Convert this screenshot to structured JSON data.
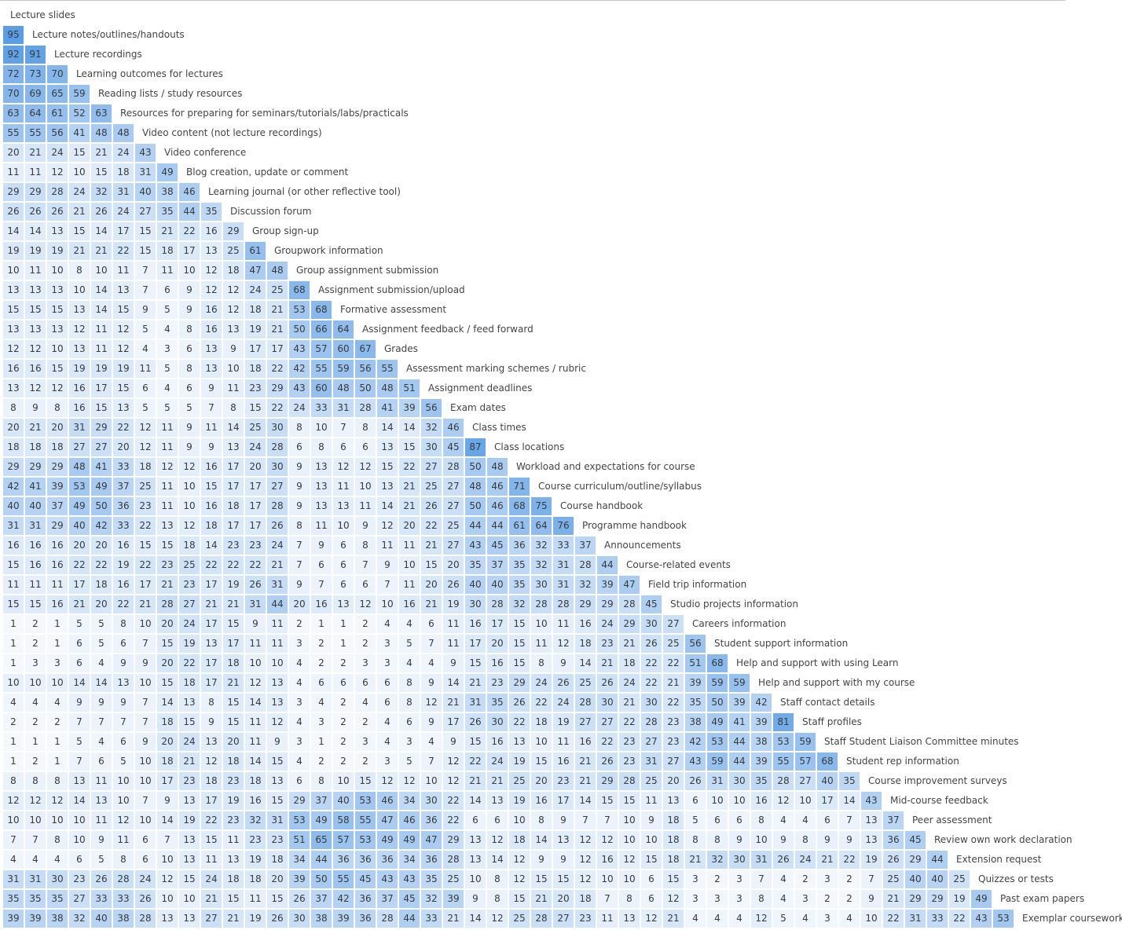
{
  "chart_data": {
    "type": "heatmap",
    "layout": "lower-triangular matrix, each row label printed to the right of its row",
    "value_range": [
      0,
      100
    ],
    "color_low": "#f7fafe",
    "color_high": "#5499e3",
    "rows": [
      {
        "label": "Lecture slides",
        "values": []
      },
      {
        "label": "Lecture notes/outlines/handouts",
        "values": [
          95
        ]
      },
      {
        "label": "Lecture recordings",
        "values": [
          92,
          91
        ]
      },
      {
        "label": "Learning outcomes for lectures",
        "values": [
          72,
          73,
          70
        ]
      },
      {
        "label": "Reading lists / study resources",
        "values": [
          70,
          69,
          65,
          59
        ]
      },
      {
        "label": "Resources for preparing for seminars/tutorials/labs/practicals",
        "values": [
          63,
          64,
          61,
          52,
          63
        ]
      },
      {
        "label": "Video content (not lecture recordings)",
        "values": [
          55,
          55,
          56,
          41,
          48,
          48
        ]
      },
      {
        "label": "Video conference",
        "values": [
          20,
          21,
          24,
          15,
          21,
          24,
          43
        ]
      },
      {
        "label": "Blog creation, update or comment",
        "values": [
          11,
          11,
          12,
          10,
          15,
          18,
          31,
          49
        ]
      },
      {
        "label": "Learning journal (or other reflective tool)",
        "values": [
          29,
          29,
          28,
          24,
          32,
          31,
          40,
          38,
          46
        ]
      },
      {
        "label": "Discussion forum",
        "values": [
          26,
          26,
          26,
          21,
          26,
          24,
          27,
          35,
          44,
          35
        ]
      },
      {
        "label": "Group sign-up",
        "values": [
          14,
          14,
          13,
          15,
          14,
          17,
          15,
          21,
          22,
          16,
          29
        ]
      },
      {
        "label": "Groupwork information",
        "values": [
          19,
          19,
          19,
          21,
          21,
          22,
          15,
          18,
          17,
          13,
          25,
          61
        ]
      },
      {
        "label": "Group assignment submission",
        "values": [
          10,
          11,
          10,
          8,
          10,
          11,
          7,
          11,
          10,
          12,
          18,
          47,
          48
        ]
      },
      {
        "label": "Assignment submission/upload",
        "values": [
          13,
          13,
          13,
          10,
          14,
          13,
          7,
          6,
          9,
          12,
          12,
          24,
          25,
          68
        ]
      },
      {
        "label": "Formative assessment",
        "values": [
          15,
          15,
          15,
          13,
          14,
          15,
          9,
          5,
          9,
          16,
          12,
          18,
          21,
          53,
          68
        ]
      },
      {
        "label": "Assignment feedback / feed forward",
        "values": [
          13,
          13,
          13,
          12,
          11,
          12,
          5,
          4,
          8,
          16,
          13,
          19,
          21,
          50,
          66,
          64
        ]
      },
      {
        "label": "Grades",
        "values": [
          12,
          12,
          10,
          13,
          11,
          12,
          4,
          3,
          6,
          13,
          9,
          17,
          17,
          43,
          57,
          60,
          67
        ]
      },
      {
        "label": "Assessment marking schemes / rubric",
        "values": [
          16,
          16,
          15,
          19,
          19,
          19,
          11,
          5,
          8,
          13,
          10,
          18,
          22,
          42,
          55,
          59,
          56,
          55
        ]
      },
      {
        "label": "Assignment deadlines",
        "values": [
          13,
          12,
          12,
          16,
          17,
          15,
          6,
          4,
          6,
          9,
          11,
          23,
          29,
          43,
          60,
          48,
          50,
          48,
          51
        ]
      },
      {
        "label": "Exam dates",
        "values": [
          8,
          9,
          8,
          16,
          15,
          13,
          5,
          5,
          5,
          7,
          8,
          15,
          22,
          24,
          33,
          31,
          28,
          41,
          39,
          56
        ]
      },
      {
        "label": "Class times",
        "values": [
          20,
          21,
          20,
          31,
          29,
          22,
          12,
          11,
          9,
          11,
          14,
          25,
          30,
          8,
          10,
          7,
          8,
          14,
          14,
          32,
          46
        ]
      },
      {
        "label": "Class locations",
        "values": [
          18,
          18,
          18,
          27,
          27,
          20,
          12,
          11,
          9,
          9,
          13,
          24,
          28,
          6,
          8,
          6,
          6,
          13,
          15,
          30,
          45,
          87
        ]
      },
      {
        "label": "Workload and expectations for course",
        "values": [
          29,
          29,
          29,
          48,
          41,
          33,
          18,
          12,
          12,
          16,
          17,
          20,
          30,
          9,
          13,
          12,
          12,
          15,
          22,
          27,
          28,
          50,
          48
        ]
      },
      {
        "label": "Course curriculum/outline/syllabus",
        "values": [
          42,
          41,
          39,
          53,
          49,
          37,
          25,
          11,
          10,
          15,
          17,
          17,
          27,
          9,
          13,
          11,
          10,
          13,
          21,
          25,
          27,
          48,
          46,
          71
        ]
      },
      {
        "label": "Course handbook",
        "values": [
          40,
          40,
          37,
          49,
          50,
          36,
          23,
          11,
          10,
          16,
          18,
          17,
          28,
          9,
          13,
          13,
          11,
          14,
          21,
          26,
          27,
          50,
          46,
          68,
          75
        ]
      },
      {
        "label": "Programme handbook",
        "values": [
          31,
          31,
          29,
          40,
          42,
          33,
          22,
          13,
          12,
          18,
          17,
          17,
          26,
          8,
          11,
          10,
          9,
          12,
          20,
          22,
          25,
          44,
          44,
          61,
          64,
          76
        ]
      },
      {
        "label": "Announcements",
        "values": [
          16,
          16,
          16,
          20,
          20,
          16,
          15,
          15,
          18,
          14,
          23,
          23,
          24,
          7,
          9,
          6,
          8,
          11,
          11,
          21,
          27,
          43,
          45,
          36,
          32,
          33,
          37
        ]
      },
      {
        "label": "Course-related events",
        "values": [
          15,
          16,
          16,
          22,
          22,
          19,
          22,
          23,
          25,
          22,
          22,
          22,
          21,
          7,
          6,
          6,
          7,
          9,
          10,
          15,
          20,
          35,
          37,
          35,
          32,
          31,
          28,
          44
        ]
      },
      {
        "label": "Field trip information",
        "values": [
          11,
          11,
          11,
          17,
          18,
          16,
          17,
          21,
          23,
          17,
          19,
          26,
          31,
          9,
          7,
          6,
          6,
          7,
          11,
          20,
          26,
          40,
          40,
          35,
          30,
          31,
          32,
          39,
          47
        ]
      },
      {
        "label": "Studio projects information",
        "values": [
          15,
          15,
          16,
          21,
          20,
          22,
          21,
          28,
          27,
          21,
          21,
          31,
          44,
          20,
          16,
          13,
          12,
          10,
          16,
          21,
          19,
          30,
          28,
          32,
          28,
          28,
          29,
          29,
          28,
          45
        ]
      },
      {
        "label": "Careers information",
        "values": [
          1,
          2,
          1,
          5,
          5,
          8,
          10,
          20,
          24,
          17,
          15,
          9,
          11,
          2,
          1,
          1,
          2,
          4,
          4,
          6,
          11,
          16,
          17,
          15,
          10,
          11,
          16,
          24,
          29,
          30,
          27
        ]
      },
      {
        "label": "Student support information",
        "values": [
          1,
          2,
          1,
          6,
          5,
          6,
          7,
          15,
          19,
          13,
          17,
          11,
          11,
          3,
          2,
          1,
          2,
          3,
          5,
          7,
          11,
          17,
          20,
          15,
          11,
          12,
          18,
          23,
          21,
          26,
          25,
          56
        ]
      },
      {
        "label": "Help and support with using Learn",
        "values": [
          1,
          3,
          3,
          6,
          4,
          9,
          9,
          20,
          22,
          17,
          18,
          10,
          10,
          4,
          2,
          2,
          3,
          3,
          4,
          4,
          9,
          15,
          16,
          15,
          8,
          9,
          14,
          21,
          18,
          22,
          22,
          51,
          68
        ]
      },
      {
        "label": "Help and support with my course",
        "values": [
          10,
          10,
          10,
          14,
          14,
          13,
          10,
          15,
          18,
          17,
          21,
          12,
          13,
          4,
          6,
          6,
          6,
          6,
          8,
          9,
          14,
          21,
          23,
          29,
          24,
          26,
          25,
          26,
          24,
          22,
          21,
          39,
          59,
          59
        ]
      },
      {
        "label": "Staff contact details",
        "values": [
          4,
          4,
          4,
          9,
          9,
          9,
          7,
          14,
          13,
          8,
          15,
          14,
          13,
          3,
          4,
          2,
          4,
          6,
          8,
          12,
          21,
          31,
          35,
          26,
          22,
          24,
          28,
          30,
          21,
          30,
          22,
          35,
          50,
          39,
          42
        ]
      },
      {
        "label": "Staff profiles",
        "values": [
          2,
          2,
          2,
          7,
          7,
          7,
          7,
          18,
          15,
          9,
          15,
          11,
          12,
          4,
          3,
          2,
          2,
          4,
          6,
          9,
          17,
          26,
          30,
          22,
          18,
          19,
          27,
          27,
          22,
          28,
          23,
          38,
          49,
          41,
          39,
          81
        ]
      },
      {
        "label": "Staff Student Liaison Committee minutes",
        "values": [
          1,
          1,
          1,
          5,
          4,
          6,
          9,
          20,
          24,
          13,
          20,
          11,
          9,
          3,
          1,
          2,
          3,
          4,
          3,
          4,
          9,
          15,
          16,
          13,
          10,
          11,
          16,
          22,
          23,
          27,
          23,
          42,
          53,
          44,
          38,
          53,
          59
        ]
      },
      {
        "label": "Student rep information",
        "values": [
          1,
          2,
          1,
          7,
          6,
          5,
          10,
          18,
          21,
          12,
          18,
          14,
          15,
          4,
          2,
          2,
          2,
          3,
          5,
          7,
          12,
          22,
          24,
          19,
          15,
          16,
          21,
          26,
          23,
          31,
          27,
          43,
          59,
          44,
          39,
          55,
          57,
          68
        ]
      },
      {
        "label": "Course improvement surveys",
        "values": [
          8,
          8,
          8,
          13,
          11,
          10,
          10,
          17,
          23,
          18,
          23,
          18,
          13,
          6,
          8,
          10,
          15,
          12,
          12,
          10,
          12,
          21,
          21,
          25,
          20,
          23,
          21,
          29,
          28,
          25,
          20,
          26,
          31,
          30,
          35,
          28,
          27,
          40,
          35
        ]
      },
      {
        "label": "Mid-course feedback",
        "values": [
          12,
          12,
          12,
          14,
          13,
          10,
          7,
          9,
          13,
          17,
          19,
          16,
          15,
          29,
          37,
          40,
          53,
          46,
          34,
          30,
          22,
          14,
          13,
          19,
          16,
          17,
          14,
          15,
          15,
          11,
          13,
          6,
          10,
          10,
          16,
          12,
          10,
          17,
          14,
          43
        ]
      },
      {
        "label": "Peer assessment",
        "values": [
          10,
          10,
          10,
          10,
          11,
          12,
          10,
          14,
          19,
          22,
          23,
          32,
          31,
          53,
          49,
          58,
          55,
          47,
          46,
          36,
          22,
          6,
          6,
          10,
          8,
          9,
          7,
          7,
          10,
          9,
          18,
          5,
          6,
          6,
          8,
          4,
          4,
          6,
          7,
          13,
          37
        ]
      },
      {
        "label": "Review own work declaration",
        "values": [
          7,
          7,
          8,
          10,
          9,
          11,
          6,
          7,
          13,
          15,
          11,
          23,
          23,
          51,
          65,
          57,
          53,
          49,
          49,
          47,
          29,
          13,
          12,
          18,
          14,
          13,
          12,
          12,
          10,
          10,
          18,
          8,
          8,
          9,
          10,
          9,
          8,
          9,
          9,
          13,
          36,
          45
        ]
      },
      {
        "label": "Extension request",
        "values": [
          4,
          4,
          4,
          6,
          5,
          8,
          6,
          10,
          13,
          11,
          13,
          19,
          18,
          34,
          44,
          36,
          36,
          36,
          34,
          36,
          28,
          13,
          14,
          12,
          9,
          9,
          12,
          16,
          12,
          15,
          18,
          21,
          32,
          30,
          31,
          26,
          24,
          21,
          22,
          19,
          26,
          29,
          44
        ]
      },
      {
        "label": "Quizzes or tests",
        "values": [
          31,
          31,
          30,
          23,
          26,
          28,
          24,
          12,
          15,
          24,
          18,
          18,
          20,
          39,
          50,
          55,
          45,
          43,
          43,
          35,
          25,
          10,
          8,
          12,
          15,
          15,
          12,
          10,
          10,
          6,
          15,
          3,
          2,
          3,
          7,
          4,
          2,
          3,
          2,
          7,
          25,
          40,
          40,
          25
        ]
      },
      {
        "label": "Past exam papers",
        "values": [
          35,
          35,
          35,
          27,
          33,
          33,
          26,
          10,
          10,
          21,
          15,
          11,
          15,
          26,
          37,
          42,
          36,
          37,
          45,
          32,
          39,
          9,
          8,
          15,
          21,
          20,
          18,
          7,
          8,
          6,
          12,
          3,
          3,
          3,
          8,
          4,
          3,
          2,
          2,
          9,
          21,
          29,
          29,
          19,
          49
        ]
      },
      {
        "label": "Exemplar coursework",
        "values": [
          39,
          39,
          38,
          32,
          40,
          38,
          28,
          13,
          13,
          27,
          21,
          19,
          26,
          30,
          38,
          39,
          36,
          28,
          44,
          33,
          21,
          14,
          12,
          25,
          28,
          27,
          23,
          11,
          13,
          12,
          21,
          4,
          4,
          4,
          12,
          5,
          4,
          3,
          4,
          10,
          22,
          31,
          33,
          22,
          43,
          53
        ]
      }
    ]
  }
}
